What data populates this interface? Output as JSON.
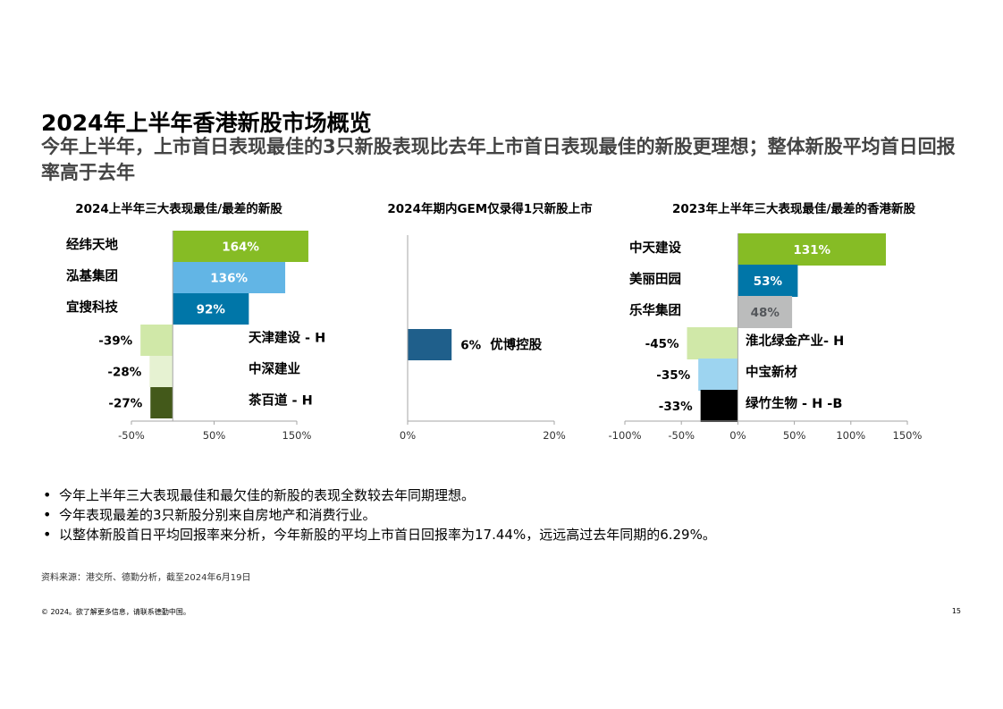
{
  "title": "2024年上半年香港新股市场概览",
  "subtitle": "今年上半年，上市首日表现最佳的3只新股表现比去年上市首日表现最佳的新股更理想；整体新股平均首日回报率高于去年",
  "chart_data": [
    {
      "type": "bar",
      "orientation": "horizontal",
      "title": "2024上半年三大表现最佳/最差的新股",
      "categories": [
        "经纬天地",
        "泓基集团",
        "宜搜科技",
        "天津建设 - H",
        "中深建业",
        "茶百道 - H"
      ],
      "values": [
        164,
        136,
        92,
        -39,
        -28,
        -27
      ],
      "value_labels": [
        "164%",
        "136%",
        "92%",
        "-39%",
        "-28%",
        "-27%"
      ],
      "colors": [
        "#86bc25",
        "#62b5e5",
        "#0076a8",
        "#d0e8a8",
        "#e6f2d2",
        "#43591a"
      ],
      "label_colors": [
        "#ffffff",
        "#ffffff",
        "#ffffff",
        "#000000",
        "#000000",
        "#000000"
      ],
      "xlim": [
        -50,
        150
      ],
      "xticks": [
        -50,
        50,
        150
      ],
      "xtick_labels": [
        "-50%",
        "50%",
        "150%"
      ]
    },
    {
      "type": "bar",
      "orientation": "horizontal",
      "title": "2024年期内GEM仅录得1只新股上市",
      "categories": [
        "优博控股"
      ],
      "values": [
        6
      ],
      "value_labels": [
        "6%"
      ],
      "colors": [
        "#1f5f8b"
      ],
      "label_colors": [
        "#000000"
      ],
      "xlim": [
        0,
        20
      ],
      "xticks": [
        0,
        20
      ],
      "xtick_labels": [
        "0%",
        "20%"
      ]
    },
    {
      "type": "bar",
      "orientation": "horizontal",
      "title": "2023年上半年三大表现最佳/最差的香港新股",
      "categories": [
        "中天建设",
        "美丽田园",
        "乐华集团",
        "淮北绿金产业- H",
        "中宝新材",
        "绿竹生物 - H -B"
      ],
      "values": [
        131,
        53,
        48,
        -45,
        -35,
        -33
      ],
      "value_labels": [
        "131%",
        "53%",
        "48%",
        "-45%",
        "-35%",
        "-33%"
      ],
      "colors": [
        "#86bc25",
        "#0076a8",
        "#bbbcbc",
        "#d0e8a8",
        "#9dd4f0",
        "#000000"
      ],
      "label_colors": [
        "#ffffff",
        "#ffffff",
        "#53565a",
        "#000000",
        "#000000",
        "#000000"
      ],
      "xlim": [
        -100,
        150
      ],
      "xticks": [
        -100,
        -50,
        0,
        50,
        100,
        150
      ],
      "xtick_labels": [
        "-100%",
        "-50%",
        "0%",
        "50%",
        "100%",
        "150%"
      ]
    }
  ],
  "bullets": [
    "今年上半年三大表现最佳和最欠佳的新股的表现全数较去年同期理想。",
    "今年表现最差的3只新股分别来自房地产和消费行业。",
    "以整体新股首日平均回报率来分析，今年新股的平均上市首日回报率为17.44%，远远高过去年同期的6.29%。"
  ],
  "source": "资料来源：港交所、德勤分析，截至2024年6月19日",
  "copyright": "© 2024。欲了解更多信息，请联系德勤中国。",
  "page_number": "15"
}
